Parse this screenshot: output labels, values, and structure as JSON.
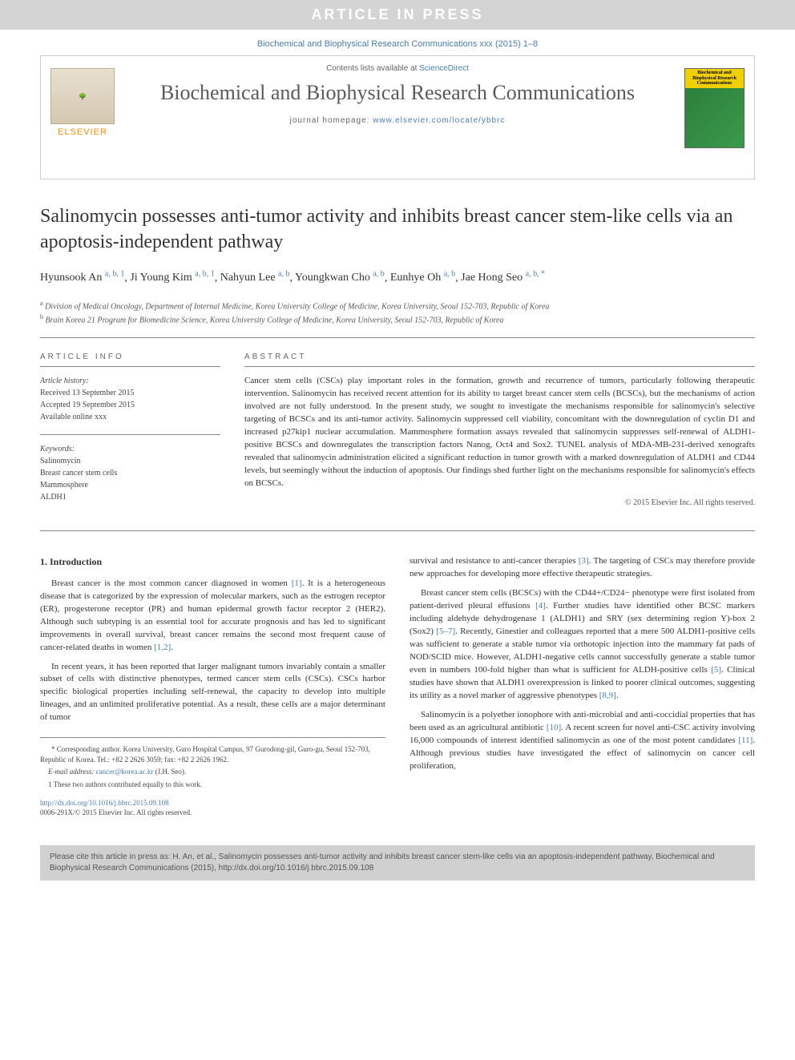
{
  "banner": "ARTICLE IN PRESS",
  "topCitation": "Biochemical and Biophysical Research Communications xxx (2015) 1–8",
  "header": {
    "contentsPrefix": "Contents lists available at ",
    "contentsLink": "ScienceDirect",
    "journalName": "Biochemical and Biophysical Research Communications",
    "homepagePrefix": "journal homepage: ",
    "homepageUrl": "www.elsevier.com/locate/ybbrc",
    "publisherName": "ELSEVIER",
    "thumbLabel": "Biochemical and Biophysical Research Communications"
  },
  "title": "Salinomycin possesses anti-tumor activity and inhibits breast cancer stem-like cells via an apoptosis-independent pathway",
  "authors": [
    {
      "name": "Hyunsook An",
      "sup": "a, b, 1"
    },
    {
      "name": "Ji Young Kim",
      "sup": "a, b, 1"
    },
    {
      "name": "Nahyun Lee",
      "sup": "a, b"
    },
    {
      "name": "Youngkwan Cho",
      "sup": "a, b"
    },
    {
      "name": "Eunhye Oh",
      "sup": "a, b"
    },
    {
      "name": "Jae Hong Seo",
      "sup": "a, b, *"
    }
  ],
  "affiliations": [
    {
      "sup": "a",
      "text": "Division of Medical Oncology, Department of Internal Medicine, Korea University College of Medicine, Korea University, Seoul 152-703, Republic of Korea"
    },
    {
      "sup": "b",
      "text": "Brain Korea 21 Program for Biomedicine Science, Korea University College of Medicine, Korea University, Seoul 152-703, Republic of Korea"
    }
  ],
  "articleInfo": {
    "heading": "ARTICLE INFO",
    "historyLabel": "Article history:",
    "received": "Received 13 September 2015",
    "accepted": "Accepted 19 September 2015",
    "available": "Available online xxx",
    "keywordsLabel": "Keywords:",
    "keywords": [
      "Salinomycin",
      "Breast cancer stem cells",
      "Mammosphere",
      "ALDH1"
    ]
  },
  "abstract": {
    "heading": "ABSTRACT",
    "text": "Cancer stem cells (CSCs) play important roles in the formation, growth and recurrence of tumors, particularly following therapeutic intervention. Salinomycin has received recent attention for its ability to target breast cancer stem cells (BCSCs), but the mechanisms of action involved are not fully understood. In the present study, we sought to investigate the mechanisms responsible for salinomycin's selective targeting of BCSCs and its anti-tumor activity. Salinomycin suppressed cell viability, concomitant with the downregulation of cyclin D1 and increased p27kip1 nuclear accumulation. Mammosphere formation assays revealed that salinomycin suppresses self-renewal of ALDH1-positive BCSCs and downregulates the transcription factors Nanog, Oct4 and Sox2. TUNEL analysis of MDA-MB-231-derived xenografts revealed that salinomycin administration elicited a significant reduction in tumor growth with a marked downregulation of ALDH1 and CD44 levels, but seemingly without the induction of apoptosis. Our findings shed further light on the mechanisms responsible for salinomycin's effects on BCSCs.",
    "copyright": "© 2015 Elsevier Inc. All rights reserved."
  },
  "body": {
    "introHeading": "1. Introduction",
    "col1p1": "Breast cancer is the most common cancer diagnosed in women [1]. It is a heterogeneous disease that is categorized by the expression of molecular markers, such as the estrogen receptor (ER), progesterone receptor (PR) and human epidermal growth factor receptor 2 (HER2). Although such subtyping is an essential tool for accurate prognosis and has led to significant improvements in overall survival, breast cancer remains the second most frequent cause of cancer-related deaths in women [1,2].",
    "col1p2": "In recent years, it has been reported that larger malignant tumors invariably contain a smaller subset of cells with distinctive phenotypes, termed cancer stem cells (CSCs). CSCs harbor specific biological properties including self-renewal, the capacity to develop into multiple lineages, and an unlimited proliferative potential. As a result, these cells are a major determinant of tumor",
    "col2p1": "survival and resistance to anti-cancer therapies [3]. The targeting of CSCs may therefore provide new approaches for developing more effective therapeutic strategies.",
    "col2p2": "Breast cancer stem cells (BCSCs) with the CD44+/CD24− phenotype were first isolated from patient-derived pleural effusions [4]. Further studies have identified other BCSC markers including aldehyde dehydrogenase 1 (ALDH1) and SRY (sex determining region Y)-box 2 (Sox2) [5–7]. Recently, Ginestier and colleagues reported that a mere 500 ALDH1-positive cells was sufficient to generate a stable tumor via orthotopic injection into the mammary fat pads of NOD/SCID mice. However, ALDH1-negative cells cannot successfully generate a stable tumor even in numbers 100-fold higher than what is sufficient for ALDH-positive cells [5]. Clinical studies have shown that ALDH1 overexpression is linked to poorer clinical outcomes, suggesting its utility as a novel marker of aggressive phenotypes [8,9].",
    "col2p3": "Salinomycin is a polyether ionophore with anti-microbial and anti-coccidial properties that has been used as an agricultural antibiotic [10]. A recent screen for novel anti-CSC activity involving 16,000 compounds of interest identified salinomycin as one of the most potent candidates [11]. Although previous studies have investigated the effect of salinomycin on cancer cell proliferation,"
  },
  "footnotes": {
    "corresponding": "* Corresponding author. Korea University, Guro Hospital Campus, 97 Gurodong-gil, Guro-gu, Seoul 152-703, Republic of Korea. Tel.: +82 2 2626 3059; fax: +82 2 2626 1962.",
    "emailLabel": "E-mail address: ",
    "email": "cancer@korea.ac.kr",
    "emailSuffix": " (J.H. Seo).",
    "contrib": "1 These two authors contributed equally to this work."
  },
  "doi": {
    "url": "http://dx.doi.org/10.1016/j.bbrc.2015.09.108",
    "issn": "0006-291X/© 2015 Elsevier Inc. All rights reserved."
  },
  "citeBox": "Please cite this article in press as: H. An, et al., Salinomycin possesses anti-tumor activity and inhibits breast cancer stem-like cells via an apoptosis-independent pathway, Biochemical and Biophysical Research Communications (2015), http://dx.doi.org/10.1016/j.bbrc.2015.09.108",
  "colors": {
    "linkBlue": "#4a7db5",
    "bannerGray": "#d4d4d4",
    "elsevierOrange": "#ff8c00",
    "citeBoxGray": "#d0d0d0"
  }
}
